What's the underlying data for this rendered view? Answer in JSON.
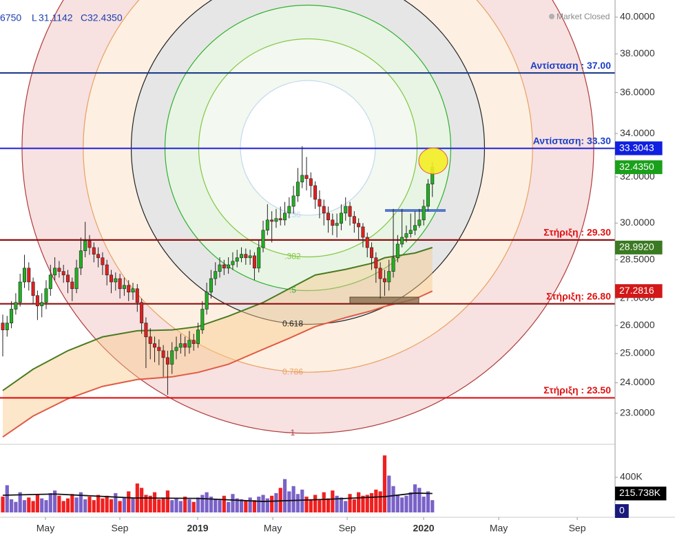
{
  "header": {
    "items": [
      {
        "prefix": null,
        "value": "6750"
      },
      {
        "prefix": "L",
        "value": "31.1142"
      },
      {
        "prefix": "C",
        "value": "32.4350"
      }
    ],
    "status": "Market Closed"
  },
  "chart_data": [
    {
      "type": "candlestick",
      "log_scale": true,
      "grid": false,
      "xlim": [
        -0.635,
        141.1
      ],
      "ylim": [
        22.15,
        40.97
      ],
      "xticks": [
        {
          "value": 9.84,
          "label": "May"
        },
        {
          "value": 26.98,
          "label": "Sep"
        },
        {
          "value": 44.92,
          "label": "2019"
        },
        {
          "value": 62.22,
          "label": "May"
        },
        {
          "value": 79.37,
          "label": "Sep"
        },
        {
          "value": 96.98,
          "label": "2020"
        },
        {
          "value": 114.29,
          "label": "May"
        },
        {
          "value": 132.38,
          "label": "Sep"
        }
      ],
      "yticks": [
        {
          "value": 40,
          "label": "40.0000"
        },
        {
          "value": 38,
          "label": "38.0000"
        },
        {
          "value": 36,
          "label": "36.0000"
        },
        {
          "value": 34,
          "label": "34.0000"
        },
        {
          "value": 32,
          "label": "32.0000"
        },
        {
          "value": 30,
          "label": "30.0000"
        },
        {
          "value": 28.5,
          "label": "28.5000"
        },
        {
          "value": 27,
          "label": "27.0000"
        },
        {
          "value": 26,
          "label": "26.0000"
        },
        {
          "value": 25,
          "label": "25.0000"
        },
        {
          "value": 24,
          "label": "24.0000"
        },
        {
          "value": 23,
          "label": "23.0000"
        }
      ],
      "up_color": "#22b022",
      "down_color": "#e02020",
      "x": [
        0,
        1,
        2,
        3,
        4,
        5,
        6,
        7,
        8,
        9,
        10,
        11,
        12,
        13,
        14,
        15,
        16,
        17,
        18,
        19,
        20,
        21,
        22,
        23,
        24,
        25,
        26,
        27,
        28,
        29,
        30,
        31,
        32,
        33,
        34,
        35,
        36,
        37,
        38,
        39,
        40,
        41,
        42,
        43,
        44,
        45,
        46,
        47,
        48,
        49,
        50,
        51,
        52,
        53,
        54,
        55,
        56,
        57,
        58,
        59,
        60,
        61,
        62,
        63,
        64,
        65,
        66,
        67,
        68,
        69,
        70,
        71,
        72,
        73,
        74,
        75,
        76,
        77,
        78,
        79,
        80,
        81,
        82,
        83,
        84,
        85,
        86,
        87,
        88,
        89,
        90,
        91,
        92,
        93,
        94,
        95,
        96,
        97,
        98,
        99
      ],
      "open": [
        26.09,
        25.84,
        26.09,
        26.6,
        26.85,
        27.63,
        28.17,
        27.63,
        27.11,
        26.72,
        26.85,
        27.37,
        27.9,
        28.17,
        28.04,
        27.9,
        27.63,
        27.37,
        28.17,
        28.86,
        29.27,
        28.99,
        28.72,
        28.58,
        28.3,
        27.9,
        27.63,
        27.76,
        27.37,
        27.5,
        27.24,
        27.37,
        26.85,
        26.09,
        25.59,
        25.35,
        25.22,
        25.1,
        24.86,
        24.63,
        25.1,
        25.22,
        25.35,
        25.22,
        25.47,
        25.35,
        25.84,
        26.6,
        27.24,
        27.76,
        28.04,
        28.3,
        28.17,
        28.3,
        28.44,
        28.58,
        28.72,
        28.58,
        28.66,
        28.17,
        28.99,
        29.7,
        30.13,
        30.07,
        30.19,
        30.13,
        30.42,
        30.71,
        31.16,
        31.77,
        32.07,
        31.92,
        31.61,
        31.01,
        30.71,
        30.42,
        30.13,
        29.9,
        29.99,
        30.42,
        30.71,
        30.28,
        29.99,
        29.84,
        29.41,
        28.99,
        28.58,
        28.17,
        27.76,
        27.63,
        28.04,
        28.58,
        29.13,
        29.41,
        29.56,
        29.7,
        29.9,
        30.13,
        30.71,
        31.68
      ],
      "high": [
        26.4,
        26.35,
        26.9,
        27.2,
        27.95,
        28.7,
        28.4,
        27.8,
        27.3,
        27.2,
        27.7,
        28.3,
        28.6,
        28.45,
        28.3,
        28.1,
        27.8,
        28.5,
        29.4,
        30.05,
        29.5,
        29.2,
        29,
        28.8,
        28.5,
        28.1,
        28,
        27.95,
        27.8,
        27.7,
        27.6,
        27.55,
        27,
        26.3,
        25.9,
        25.6,
        25.5,
        25.3,
        25.1,
        25.4,
        25.6,
        25.7,
        25.6,
        25.8,
        25.7,
        26.1,
        26.9,
        27.6,
        28.1,
        28.4,
        28.6,
        28.5,
        28.6,
        28.8,
        28.9,
        29,
        28.95,
        28.9,
        28.8,
        29.3,
        30.1,
        30.8,
        30.5,
        30.6,
        30.7,
        30.9,
        31.1,
        31.6,
        32.4,
        33.4,
        32.9,
        32.2,
        31.8,
        31.4,
        31,
        30.7,
        30.4,
        30.4,
        30.8,
        31.1,
        30.9,
        30.5,
        30.2,
        30,
        29.6,
        29.2,
        28.8,
        28.4,
        28.1,
        28.5,
        30.6,
        29.5,
        30.6,
        29.9,
        30.4,
        30.5,
        30.6,
        31,
        31.9,
        32.675
      ],
      "low": [
        24.9,
        25.6,
        25.9,
        26.4,
        26.7,
        27.4,
        27.3,
        26.8,
        26.2,
        26.3,
        26.6,
        27.1,
        27.7,
        27.8,
        27.6,
        27.2,
        26.9,
        27.2,
        27.9,
        28.6,
        28.7,
        28.4,
        28.2,
        27.9,
        27.5,
        27.2,
        27.3,
        27,
        27.1,
        26.9,
        26.95,
        26.5,
        25.7,
        24.5,
        24.8,
        24.7,
        24.6,
        24.2,
        23.6,
        24.3,
        24.8,
        25,
        24.9,
        25,
        25.1,
        25.2,
        25.7,
        26.4,
        27,
        27.5,
        27.8,
        27.9,
        27.95,
        28.1,
        28.2,
        28.4,
        28.3,
        28.3,
        27.7,
        28,
        28.8,
        29.5,
        29.2,
        29.8,
        29.9,
        29.9,
        30.2,
        30.4,
        30.9,
        31.5,
        31.4,
        31.1,
        30.6,
        30.2,
        29.9,
        29.6,
        29.5,
        29.4,
        29.7,
        30.1,
        29.9,
        29.6,
        29.3,
        29,
        28.6,
        28.1,
        27.6,
        27,
        27.1,
        27.3,
        27.8,
        28.4,
        29,
        29.2,
        29.4,
        29.5,
        29.8,
        29.9,
        30.5,
        31.1142
      ],
      "close": [
        25.84,
        26.09,
        26.6,
        26.85,
        27.63,
        28.17,
        27.63,
        27.11,
        26.72,
        26.85,
        27.37,
        27.9,
        28.17,
        28.04,
        27.9,
        27.63,
        27.37,
        28.17,
        28.86,
        29.27,
        28.99,
        28.72,
        28.58,
        28.3,
        27.9,
        27.63,
        27.76,
        27.37,
        27.5,
        27.24,
        27.37,
        26.85,
        26.09,
        25.59,
        25.35,
        25.22,
        25.1,
        24.86,
        24.63,
        25.1,
        25.22,
        25.35,
        25.22,
        25.47,
        25.35,
        25.84,
        26.6,
        27.24,
        27.76,
        28.04,
        28.3,
        28.17,
        28.3,
        28.44,
        28.58,
        28.72,
        28.58,
        28.66,
        28.17,
        28.99,
        29.7,
        30.13,
        30.07,
        30.19,
        30.13,
        30.42,
        30.71,
        31.16,
        31.77,
        32.07,
        31.92,
        31.61,
        31.01,
        30.71,
        30.42,
        30.13,
        29.9,
        29.99,
        30.42,
        30.71,
        30.28,
        29.99,
        29.84,
        29.41,
        28.99,
        28.58,
        28.17,
        27.76,
        27.63,
        28.04,
        28.58,
        29.13,
        29.41,
        29.56,
        29.7,
        29.9,
        30.13,
        30.71,
        31.68,
        32.435
      ],
      "moving_averages": [
        {
          "color": "#4a7a20",
          "x": [
            0,
            7,
            15,
            23,
            31,
            39,
            45,
            52,
            60,
            66,
            72,
            79,
            85,
            88,
            95,
            99
          ],
          "values": [
            23.74,
            24.46,
            25.1,
            25.59,
            25.81,
            25.84,
            25.96,
            26.34,
            26.85,
            27.37,
            27.9,
            28.12,
            28.36,
            28.58,
            28.77,
            28.992
          ]
        },
        {
          "color": "#e05a44",
          "x": [
            0,
            7,
            15,
            23,
            31,
            39,
            45,
            52,
            60,
            66,
            72,
            79,
            85,
            88,
            95,
            99
          ],
          "values": [
            22.25,
            22.91,
            23.47,
            23.88,
            24.11,
            24.2,
            24.35,
            24.63,
            25.15,
            25.54,
            25.96,
            26.29,
            26.54,
            26.7,
            26.98,
            27.2816
          ]
        }
      ],
      "band_color": "#f8c98a",
      "levels": [
        {
          "value": 37,
          "label": "Αντίσταση : 37.00",
          "color": "#1f3f8a",
          "label_color": "#1a3fc8"
        },
        {
          "value": 33.3,
          "label": "Αντίσταση: 33.30",
          "color": "#2a2ad8",
          "label_color": "#1a3fc8"
        },
        {
          "value": 29.3,
          "label": "Στήριξη : 29.30",
          "color": "#8b1010",
          "label_color": "#e01010"
        },
        {
          "value": 26.8,
          "label": "Στήριξη: 26.80",
          "color": "#8b1010",
          "label_color": "#e01010"
        },
        {
          "value": 23.5,
          "label": "Στήριξη : 23.50",
          "color": "#e01010",
          "label_color": "#e01010"
        }
      ],
      "fib_circles": [
        {
          "value": 1,
          "label": "1",
          "color": "#b03a3a",
          "fill": "#f7e1e1"
        },
        {
          "value": 0.786,
          "label": "0.786",
          "color": "#e8a060",
          "fill": "#fdf0e2"
        },
        {
          "value": 0.618,
          "label": "0.618",
          "color": "#222222",
          "fill": "#e6e6e6"
        },
        {
          "value": 0.5,
          "label": ".5",
          "color": "#30b030",
          "fill": "#e8f5e4"
        },
        {
          "value": 0.382,
          "label": ".382",
          "color": "#80c840",
          "fill": "#f3f8f0"
        },
        {
          "value": 0.236,
          "label": ".236",
          "color": "#c0d8f0",
          "fill": "#ffffff"
        }
      ],
      "badges": [
        {
          "value": 33.3043,
          "label": "33.3043",
          "color": "#1020e0"
        },
        {
          "value": 32.435,
          "label": "32.4350",
          "color": "#1aa01a"
        },
        {
          "value": 28.992,
          "label": "28.9920",
          "color": "#3b7a22"
        },
        {
          "value": 27.2816,
          "label": "27.2816",
          "color": "#d21818"
        }
      ]
    },
    {
      "type": "bar",
      "ylim": [
        0,
        745000
      ],
      "yticks": [
        {
          "value": 400000,
          "label": "400K"
        }
      ],
      "up_color": "#7a62c8",
      "down_color": "#f02020",
      "values": [
        180000,
        310000,
        150000,
        120000,
        230000,
        140000,
        170000,
        130000,
        200000,
        160000,
        140000,
        220000,
        250000,
        190000,
        130000,
        160000,
        210000,
        170000,
        230000,
        150000,
        180000,
        140000,
        200000,
        160000,
        190000,
        150000,
        220000,
        130000,
        170000,
        240000,
        160000,
        330000,
        280000,
        200000,
        190000,
        230000,
        150000,
        170000,
        250000,
        140000,
        160000,
        130000,
        180000,
        150000,
        120000,
        170000,
        200000,
        230000,
        180000,
        150000,
        140000,
        190000,
        120000,
        210000,
        160000,
        150000,
        130000,
        170000,
        140000,
        180000,
        200000,
        160000,
        190000,
        220000,
        280000,
        380000,
        240000,
        300000,
        210000,
        260000,
        180000,
        150000,
        200000,
        140000,
        230000,
        160000,
        250000,
        190000,
        170000,
        130000,
        210000,
        150000,
        230000,
        190000,
        200000,
        220000,
        260000,
        240000,
        650000,
        420000,
        300000,
        200000,
        170000,
        190000,
        230000,
        320000,
        280000,
        180000,
        240000,
        140000
      ],
      "moving_average": {
        "color": "#111111",
        "x": [
          0,
          12,
          30,
          45,
          60,
          75,
          88,
          95,
          99
        ],
        "values": [
          196000,
          210000,
          165000,
          160000,
          125000,
          150000,
          180000,
          220000,
          215738
        ]
      },
      "badges": [
        {
          "value": 215738,
          "label": "215.738K",
          "color": "#000000"
        },
        {
          "value": 0,
          "label": "0",
          "color": "#1a1a7a"
        }
      ]
    }
  ]
}
